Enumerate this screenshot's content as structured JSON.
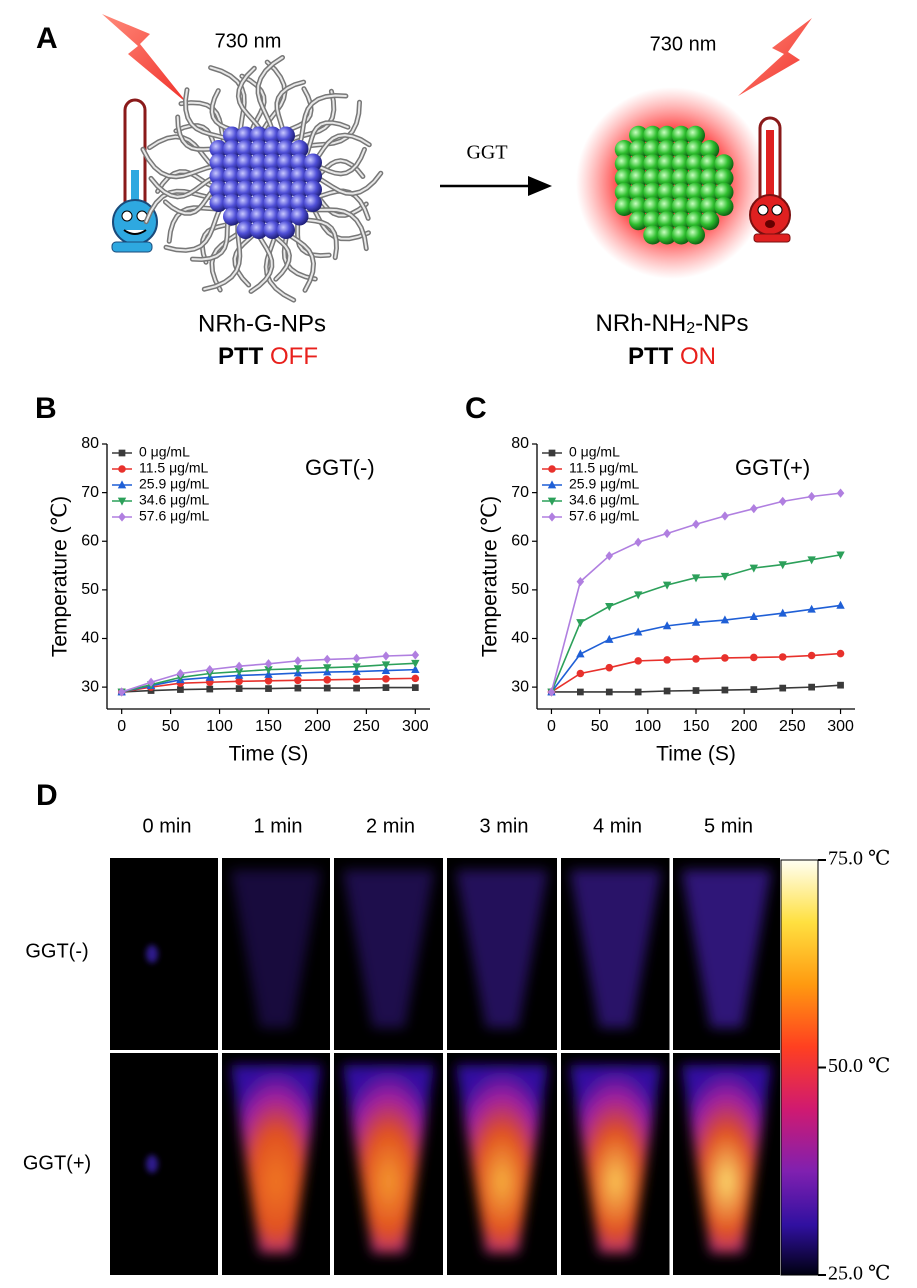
{
  "panel_a": {
    "panel_label": "A",
    "left": {
      "laser": "730 nm",
      "name": "NRh-G-NPs",
      "state_prefix": "PTT",
      "state": "OFF"
    },
    "arrow_label": "GGT",
    "right": {
      "laser": "730 nm",
      "name_parts": [
        "NRh-NH",
        "2",
        "-NPs"
      ],
      "state_prefix": "PTT",
      "state": "ON"
    }
  },
  "chart_data": [
    {
      "type": "line",
      "panel_label": "B",
      "annotation": "GGT(-)",
      "x_label": "Time (S)",
      "y_label": "Temperature (℃)",
      "x": [
        0,
        30,
        60,
        90,
        120,
        150,
        180,
        210,
        240,
        270,
        300
      ],
      "xlim": [
        -15,
        315
      ],
      "ylim": [
        25.5,
        80
      ],
      "xticks": [
        0,
        50,
        100,
        150,
        200,
        250,
        300
      ],
      "yticks": [
        30,
        40,
        50,
        60,
        70,
        80
      ],
      "legend": "upper left",
      "series": [
        {
          "name": "0 μg/mL",
          "color": "#3a3a3a",
          "marker": "square",
          "values": [
            29,
            29.3,
            29.5,
            29.6,
            29.7,
            29.7,
            29.8,
            29.8,
            29.8,
            29.9,
            29.9
          ]
        },
        {
          "name": "11.5 μg/mL",
          "color": "#e8312c",
          "marker": "circle",
          "values": [
            29,
            30,
            30.8,
            31,
            31.2,
            31.3,
            31.4,
            31.5,
            31.6,
            31.7,
            31.8
          ]
        },
        {
          "name": "25.9 μg/mL",
          "color": "#1f5fd6",
          "marker": "triangle-up",
          "values": [
            29,
            30.3,
            31.5,
            32,
            32.4,
            32.6,
            32.9,
            33.1,
            33.2,
            33.4,
            33.6
          ]
        },
        {
          "name": "34.6 μg/mL",
          "color": "#2ca05a",
          "marker": "triangle-down",
          "values": [
            29,
            30.5,
            32,
            32.8,
            33.2,
            33.6,
            33.8,
            34,
            34.2,
            34.6,
            34.9
          ]
        },
        {
          "name": "57.6 μg/mL",
          "color": "#b07fe0",
          "marker": "diamond",
          "values": [
            29,
            31,
            32.8,
            33.6,
            34.3,
            34.8,
            35.4,
            35.7,
            35.9,
            36.4,
            36.6
          ]
        }
      ]
    },
    {
      "type": "line",
      "panel_label": "C",
      "annotation": "GGT(+)",
      "x_label": "Time (S)",
      "y_label": "Temperature (℃)",
      "x": [
        0,
        30,
        60,
        90,
        120,
        150,
        180,
        210,
        240,
        270,
        300
      ],
      "xlim": [
        -15,
        315
      ],
      "ylim": [
        25.5,
        80
      ],
      "xticks": [
        0,
        50,
        100,
        150,
        200,
        250,
        300
      ],
      "yticks": [
        30,
        40,
        50,
        60,
        70,
        80
      ],
      "legend": "upper left",
      "series": [
        {
          "name": "0 μg/mL",
          "color": "#3a3a3a",
          "marker": "square",
          "values": [
            29,
            29,
            29,
            29,
            29.2,
            29.3,
            29.4,
            29.5,
            29.8,
            30,
            30.4
          ]
        },
        {
          "name": "11.5 μg/mL",
          "color": "#e8312c",
          "marker": "circle",
          "values": [
            29,
            32.8,
            34,
            35.4,
            35.6,
            35.8,
            36,
            36.1,
            36.2,
            36.5,
            36.9
          ]
        },
        {
          "name": "25.9 μg/mL",
          "color": "#1f5fd6",
          "marker": "triangle-up",
          "values": [
            29,
            36.8,
            39.8,
            41.3,
            42.6,
            43.3,
            43.8,
            44.5,
            45.2,
            46,
            46.8
          ]
        },
        {
          "name": "34.6 μg/mL",
          "color": "#2ca05a",
          "marker": "triangle-down",
          "values": [
            29,
            43.3,
            46.6,
            49,
            51,
            52.5,
            52.8,
            54.5,
            55.2,
            56.2,
            57.2
          ]
        },
        {
          "name": "57.6 μg/mL",
          "color": "#b07fe0",
          "marker": "diamond",
          "values": [
            29,
            51.7,
            57,
            59.8,
            61.6,
            63.5,
            65.2,
            66.7,
            68.2,
            69.2,
            69.9
          ]
        }
      ]
    }
  ],
  "panel_d": {
    "panel_label": "D",
    "columns": [
      "0 min",
      "1 min",
      "2 min",
      "3 min",
      "4 min",
      "5 min"
    ],
    "rows": [
      "GGT(-)",
      "GGT(+)"
    ],
    "colorbar": {
      "lim": [
        25,
        75
      ],
      "ticks": [
        {
          "value": 75,
          "label": "75.0 ℃"
        },
        {
          "value": 50,
          "label": "50.0 ℃"
        },
        {
          "value": 25,
          "label": "25.0 ℃"
        }
      ]
    }
  }
}
